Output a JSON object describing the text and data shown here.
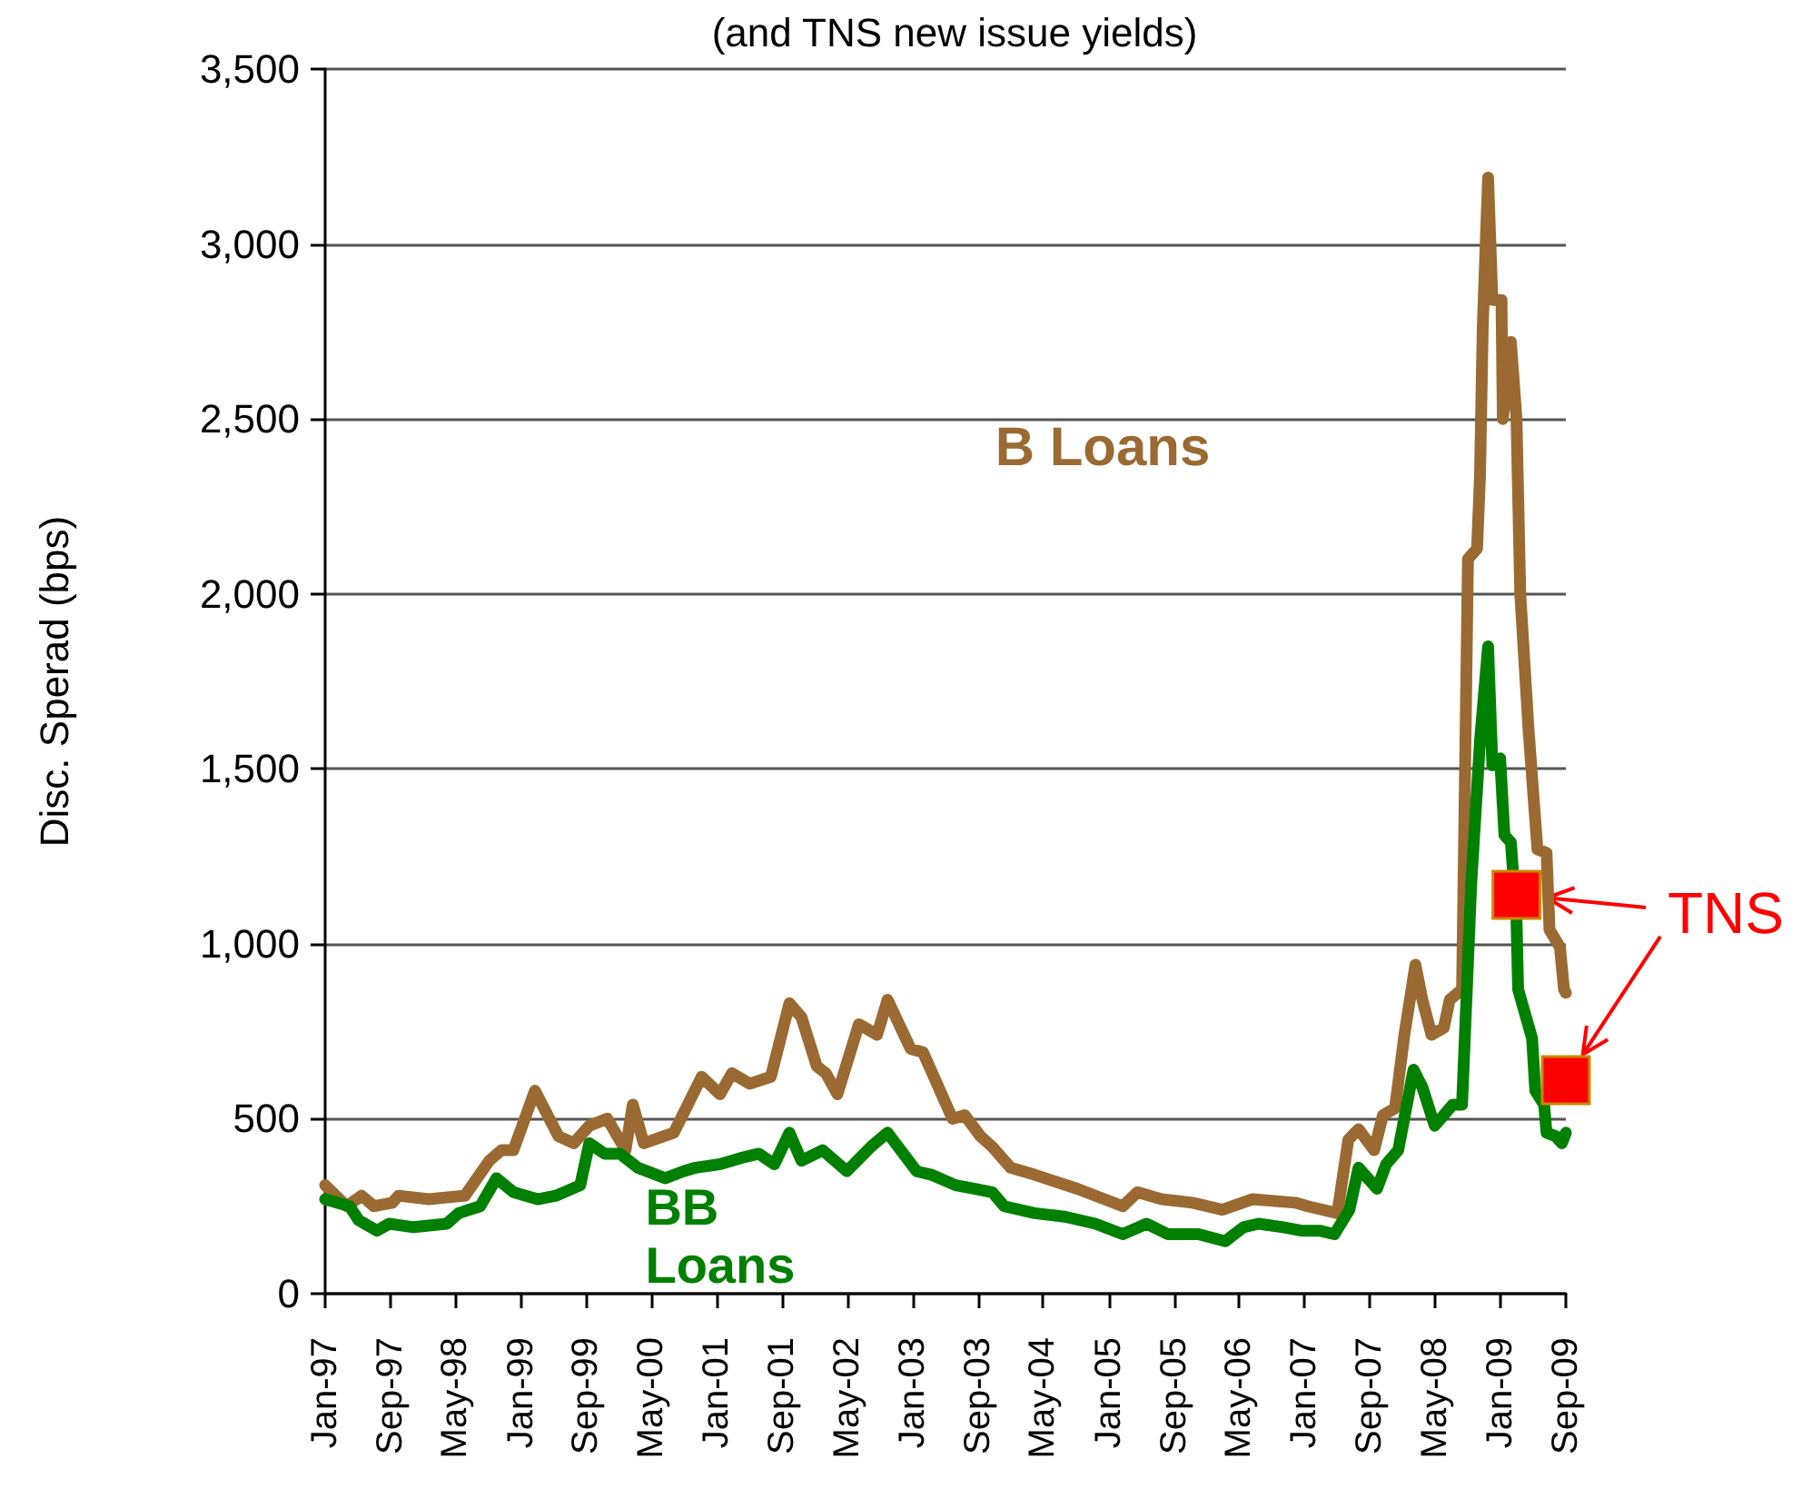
{
  "chart_data": {
    "type": "line",
    "title": "(and TNS new issue yields)",
    "ylabel": "Disc. Sperad (bps)",
    "xlim": [
      "1997-01",
      "2009-09"
    ],
    "xticks": [
      {
        "value": "1997-01",
        "label": "Jan-97"
      },
      {
        "value": "1997-09",
        "label": "Sep-97"
      },
      {
        "value": "1998-05",
        "label": "May-98"
      },
      {
        "value": "1999-01",
        "label": "Jan-99"
      },
      {
        "value": "1999-09",
        "label": "Sep-99"
      },
      {
        "value": "2000-05",
        "label": "May-00"
      },
      {
        "value": "2001-01",
        "label": "Jan-01"
      },
      {
        "value": "2001-09",
        "label": "Sep-01"
      },
      {
        "value": "2002-05",
        "label": "May-02"
      },
      {
        "value": "2003-01",
        "label": "Jan-03"
      },
      {
        "value": "2003-09",
        "label": "Sep-03"
      },
      {
        "value": "2004-05",
        "label": "May-04"
      },
      {
        "value": "2005-01",
        "label": "Jan-05"
      },
      {
        "value": "2005-09",
        "label": "Sep-05"
      },
      {
        "value": "2006-05",
        "label": "May-06"
      },
      {
        "value": "2007-01",
        "label": "Jan-07"
      },
      {
        "value": "2007-09",
        "label": "Sep-07"
      },
      {
        "value": "2008-05",
        "label": "May-08"
      },
      {
        "value": "2009-01",
        "label": "Jan-09"
      },
      {
        "value": "2009-09",
        "label": "Sep-09"
      }
    ],
    "ylim": [
      0,
      3500
    ],
    "yticks": [
      0,
      500,
      {
        "value": 1000,
        "label": "1,000"
      },
      {
        "value": 1500,
        "label": "1,500"
      },
      {
        "value": 2000,
        "label": "2,000"
      },
      {
        "value": 2500,
        "label": "2,500"
      },
      {
        "value": 3000,
        "label": "3,000"
      },
      {
        "value": 3500,
        "label": "3,500"
      }
    ],
    "grid": "y",
    "marker": "none",
    "line_style": "solid",
    "series": [
      {
        "name": "B Loans",
        "color": "#9a6a32",
        "x": [
          "1997-01-01",
          "1997-03-22",
          "1997-05-17",
          "1997-07-02",
          "1997-09-09",
          "1997-10-01",
          "1998-01-23",
          "1998-06-06",
          "1998-09-05",
          "1998-10-20",
          "1998-12-04",
          "1999-02-22",
          "1999-05-21",
          "1999-07-17",
          "1999-09-13",
          "1999-11-19",
          "2000-01-26",
          "2000-02-22",
          "2000-04-03",
          "2000-07-24",
          "2000-11-05",
          "2001-01-12",
          "2001-02-26",
          "2001-05-03",
          "2001-07-21",
          "2001-09-28",
          "2001-11-12",
          "2002-01-08",
          "2002-02-11",
          "2002-03-26",
          "2002-06-14",
          "2002-08-21",
          "2002-09-29",
          "2002-12-24",
          "2003-02-08",
          "2003-05-29",
          "2003-07-14",
          "2003-09-10",
          "2003-10-24",
          "2004-01-01",
          "2004-03-30",
          "2004-09-05",
          "2005-02-22",
          "2005-04-18",
          "2005-07-17",
          "2005-11-09",
          "2006-02-28",
          "2006-06-21",
          "2006-11-27",
          "2007-01-12",
          "2007-05-03",
          "2007-06-13",
          "2007-07-21",
          "2007-09-17",
          "2007-10-20",
          "2007-12-04",
          "2008-01-08",
          "2008-02-18",
          "2008-03-15",
          "2008-04-18",
          "2008-06-03",
          "2008-06-25",
          "2008-08-10",
          "2008-09-01",
          "2008-10-05",
          "2008-10-16",
          "2008-10-26",
          "2008-11-15",
          "2008-12-01",
          "2009-01-04",
          "2009-01-09",
          "2009-02-08",
          "2009-03-01",
          "2009-03-15",
          "2009-04-15",
          "2009-05-18",
          "2009-06-21",
          "2009-07-02",
          "2009-08-10",
          "2009-08-25",
          "2009-09-01"
        ],
        "values": [
          310,
          250,
          280,
          250,
          260,
          280,
          270,
          280,
          380,
          410,
          410,
          580,
          450,
          430,
          480,
          500,
          410,
          540,
          430,
          460,
          620,
          570,
          630,
          600,
          620,
          830,
          790,
          650,
          630,
          570,
          770,
          740,
          840,
          700,
          690,
          500,
          510,
          450,
          420,
          360,
          340,
          300,
          250,
          290,
          270,
          260,
          240,
          270,
          260,
          250,
          230,
          440,
          470,
          410,
          510,
          530,
          740,
          940,
          840,
          740,
          760,
          840,
          870,
          2100,
          2130,
          2340,
          2760,
          3190,
          2840,
          2840,
          2500,
          2720,
          2500,
          2000,
          1610,
          1270,
          1260,
          1040,
          990,
          870,
          860
        ]
      },
      {
        "name": "BB Loans",
        "color": "#008000",
        "x": [
          "1997-01-01",
          "1997-04-02",
          "1997-05-06",
          "1997-07-13",
          "1997-08-28",
          "1997-11-27",
          "1998-03-30",
          "1998-05-14",
          "1998-08-02",
          "1998-10-02",
          "1998-12-04",
          "1999-03-04",
          "1999-05-11",
          "1999-08-10",
          "1999-09-13",
          "1999-11-09",
          "2000-01-05",
          "2000-03-12",
          "2000-06-22",
          "2000-08-29",
          "2000-10-13",
          "2001-01-12",
          "2001-04-11",
          "2001-06-06",
          "2001-08-03",
          "2001-09-28",
          "2001-11-12",
          "2002-01-30",
          "2002-04-30",
          "2002-07-29",
          "2002-09-29",
          "2003-01-15",
          "2003-03-11",
          "2003-06-10",
          "2003-08-17",
          "2003-10-24",
          "2003-12-08",
          "2004-03-30",
          "2004-07-21",
          "2004-11-12",
          "2005-02-22",
          "2005-05-22",
          "2005-08-09",
          "2005-12-01",
          "2006-03-11",
          "2006-05-18",
          "2006-07-13",
          "2006-10-13",
          "2006-12-20",
          "2007-02-26",
          "2007-04-22",
          "2007-06-17",
          "2007-07-21",
          "2007-09-28",
          "2007-11-01",
          "2007-12-16",
          "2008-02-11",
          "2008-03-15",
          "2008-04-30",
          "2008-07-06",
          "2008-08-10",
          "2008-09-13",
          "2008-10-16",
          "2008-11-15",
          "2008-12-01",
          "2008-12-30",
          "2009-01-15",
          "2009-02-08",
          "2009-03-01",
          "2009-03-07",
          "2009-04-28",
          "2009-05-10",
          "2009-06-12",
          "2009-06-21",
          "2009-07-25",
          "2009-08-17",
          "2009-09-01"
        ],
        "values": [
          270,
          250,
          210,
          180,
          200,
          190,
          200,
          230,
          250,
          330,
          290,
          270,
          280,
          310,
          430,
          400,
          400,
          360,
          330,
          350,
          360,
          370,
          390,
          400,
          370,
          460,
          380,
          410,
          350,
          420,
          460,
          350,
          340,
          310,
          300,
          290,
          250,
          230,
          220,
          200,
          170,
          200,
          170,
          170,
          150,
          190,
          200,
          190,
          180,
          180,
          170,
          240,
          360,
          300,
          370,
          410,
          640,
          590,
          480,
          540,
          540,
          1170,
          1580,
          1850,
          1510,
          1530,
          1310,
          1290,
          1070,
          870,
          730,
          580,
          540,
          460,
          450,
          430,
          460
        ]
      },
      {
        "name": "TNS",
        "type": "scatter",
        "marker": "square",
        "color": "#ff0000",
        "x": [
          "2009-03",
          "2009-09"
        ],
        "values": [
          1140,
          610
        ]
      }
    ]
  }
}
